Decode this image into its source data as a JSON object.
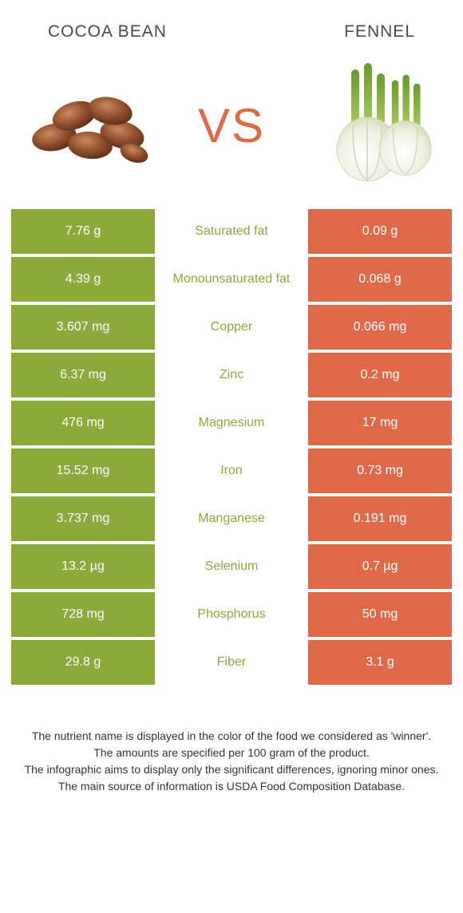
{
  "colors": {
    "green": "#8aaa3b",
    "orange": "#de6a4a",
    "textGray": "#4a4a4a",
    "white": "#ffffff"
  },
  "header": {
    "left": "COCOA BEAN",
    "right": "FENNEL",
    "vs": "VS"
  },
  "rows": [
    {
      "left": "7.76 g",
      "mid": "Saturated fat",
      "right": "0.09 g",
      "winnerColor": "#8aaa3b"
    },
    {
      "left": "4.39 g",
      "mid": "Monounsaturated fat",
      "right": "0.068 g",
      "winnerColor": "#8aaa3b"
    },
    {
      "left": "3.607 mg",
      "mid": "Copper",
      "right": "0.066 mg",
      "winnerColor": "#8aaa3b"
    },
    {
      "left": "6.37 mg",
      "mid": "Zinc",
      "right": "0.2 mg",
      "winnerColor": "#8aaa3b"
    },
    {
      "left": "476 mg",
      "mid": "Magnesium",
      "right": "17 mg",
      "winnerColor": "#8aaa3b"
    },
    {
      "left": "15.52 mg",
      "mid": "Iron",
      "right": "0.73 mg",
      "winnerColor": "#8aaa3b"
    },
    {
      "left": "3.737 mg",
      "mid": "Manganese",
      "right": "0.191 mg",
      "winnerColor": "#8aaa3b"
    },
    {
      "left": "13.2 µg",
      "mid": "Selenium",
      "right": "0.7 µg",
      "winnerColor": "#8aaa3b"
    },
    {
      "left": "728 mg",
      "mid": "Phosphorus",
      "right": "50 mg",
      "winnerColor": "#8aaa3b"
    },
    {
      "left": "29.8 g",
      "mid": "Fiber",
      "right": "3.1 g",
      "winnerColor": "#8aaa3b"
    }
  ],
  "cellColors": {
    "leftBg": "#8aaa3b",
    "rightBg": "#de6a4a"
  },
  "footer": {
    "line1": "The nutrient name is displayed in the color of the food we considered as 'winner'.",
    "line2": "The amounts are specified per 100 gram of the product.",
    "line3": "The infographic aims to display only the significant differences, ignoring minor ones.",
    "line4": "The main source of information is USDA Food Composition Database."
  }
}
